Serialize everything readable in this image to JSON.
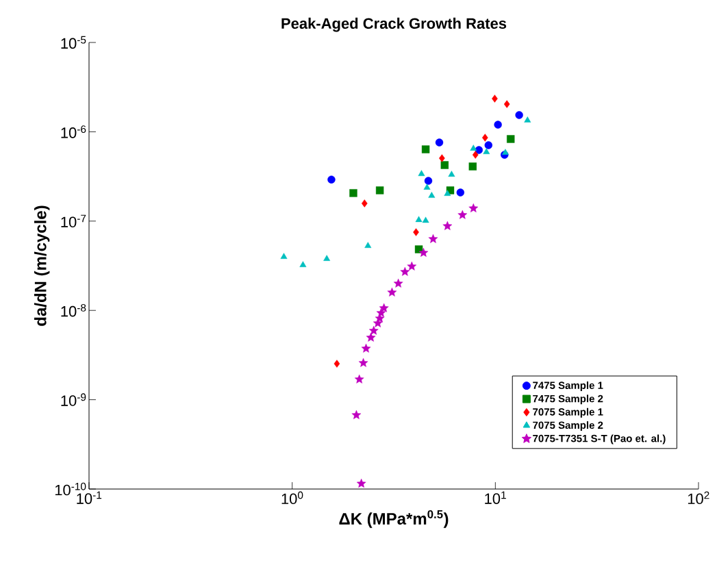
{
  "chart_data": {
    "type": "scatter",
    "title": "Peak-Aged Crack Growth Rates",
    "xlabel": "ΔK (MPa*m$^{0.5}$)",
    "ylabel": "da/dN (m/cycle)",
    "log": "xy",
    "xlim": [
      0.1,
      100
    ],
    "ylim": [
      1e-10,
      1e-05
    ],
    "xticks": [
      {
        "value": 0.1,
        "label": "10$^{-1}$"
      },
      {
        "value": 1,
        "label": "10$^{0}$"
      },
      {
        "value": 10,
        "label": "10$^{1}$"
      },
      {
        "value": 100,
        "label": "10$^{2}$"
      }
    ],
    "yticks": [
      {
        "value": 1e-10,
        "label": "10$^{-10}$"
      },
      {
        "value": 1e-09,
        "label": "10$^{-9}$"
      },
      {
        "value": 1e-08,
        "label": "10$^{-8}$"
      },
      {
        "value": 1e-07,
        "label": "10$^{-7}$"
      },
      {
        "value": 1e-06,
        "label": "10$^{-6}$"
      },
      {
        "value": 1e-05,
        "label": "10$^{-5}$"
      }
    ],
    "grid": false,
    "legend": "bottom right",
    "series": [
      {
        "name": "7475 Sample 1",
        "color": "#0000ff",
        "marker": "circle",
        "x": [
          1.56,
          5.3,
          4.68,
          6.73,
          8.3,
          9.25,
          10.3,
          13.1,
          11.1
        ],
        "values": [
          2.92e-07,
          7.59e-07,
          2.82e-07,
          2.09e-07,
          6.25e-07,
          7.08e-07,
          1.2e-06,
          1.54e-06,
          5.52e-07
        ]
      },
      {
        "name": "7475 Sample 2",
        "color": "#007f00",
        "marker": "square",
        "x": [
          2.0,
          2.7,
          4.54,
          5.63,
          6.0,
          7.74,
          11.9,
          4.2
        ],
        "values": [
          2.06e-07,
          2.21e-07,
          6.36e-07,
          4.24e-07,
          2.21e-07,
          4.09e-07,
          8.3e-07,
          4.83e-08
        ]
      },
      {
        "name": "7075 Sample 1",
        "color": "#ff0000",
        "marker": "diamond",
        "x": [
          9.93,
          11.4,
          8.9,
          7.98,
          5.46,
          2.27,
          4.07,
          1.66
        ],
        "values": [
          2.35e-06,
          2.04e-06,
          8.59e-07,
          5.52e-07,
          5.06e-07,
          1.58e-07,
          7.52e-08,
          2.53e-09
        ]
      },
      {
        "name": "7075 Sample 2",
        "color": "#00bfbf",
        "marker": "triangle",
        "x": [
          14.4,
          7.8,
          9.04,
          11.2,
          4.33,
          6.09,
          4.61,
          4.86,
          5.81,
          4.2,
          4.54,
          2.36,
          0.91,
          1.13,
          1.48
        ],
        "values": [
          1.34e-06,
          6.48e-07,
          5.93e-07,
          5.82e-07,
          3.37e-07,
          3.31e-07,
          2.37e-07,
          1.92e-07,
          2.02e-07,
          1.03e-07,
          1.01e-07,
          5.28e-08,
          3.98e-08,
          3.22e-08,
          3.78e-08
        ]
      },
      {
        "name": "7075-T7351 S-T (Pao et. al.)",
        "color": "#bf00bf",
        "marker": "star",
        "x": [
          7.8,
          6.89,
          5.81,
          4.94,
          4.43,
          3.88,
          3.59,
          3.33,
          3.1,
          2.83,
          2.74,
          2.7,
          2.64,
          2.52,
          2.44,
          2.31,
          2.24,
          2.14,
          2.07,
          2.19
        ],
        "values": [
          1.39e-07,
          1.17e-07,
          8.8e-08,
          6.3e-08,
          4.42e-08,
          3.11e-08,
          2.7e-08,
          2e-08,
          1.59e-08,
          1.06e-08,
          9.36e-09,
          8.13e-09,
          7.18e-09,
          5.92e-09,
          4.96e-09,
          3.74e-09,
          2.58e-09,
          1.69e-09,
          6.73e-10,
          1.15e-10
        ]
      }
    ]
  }
}
